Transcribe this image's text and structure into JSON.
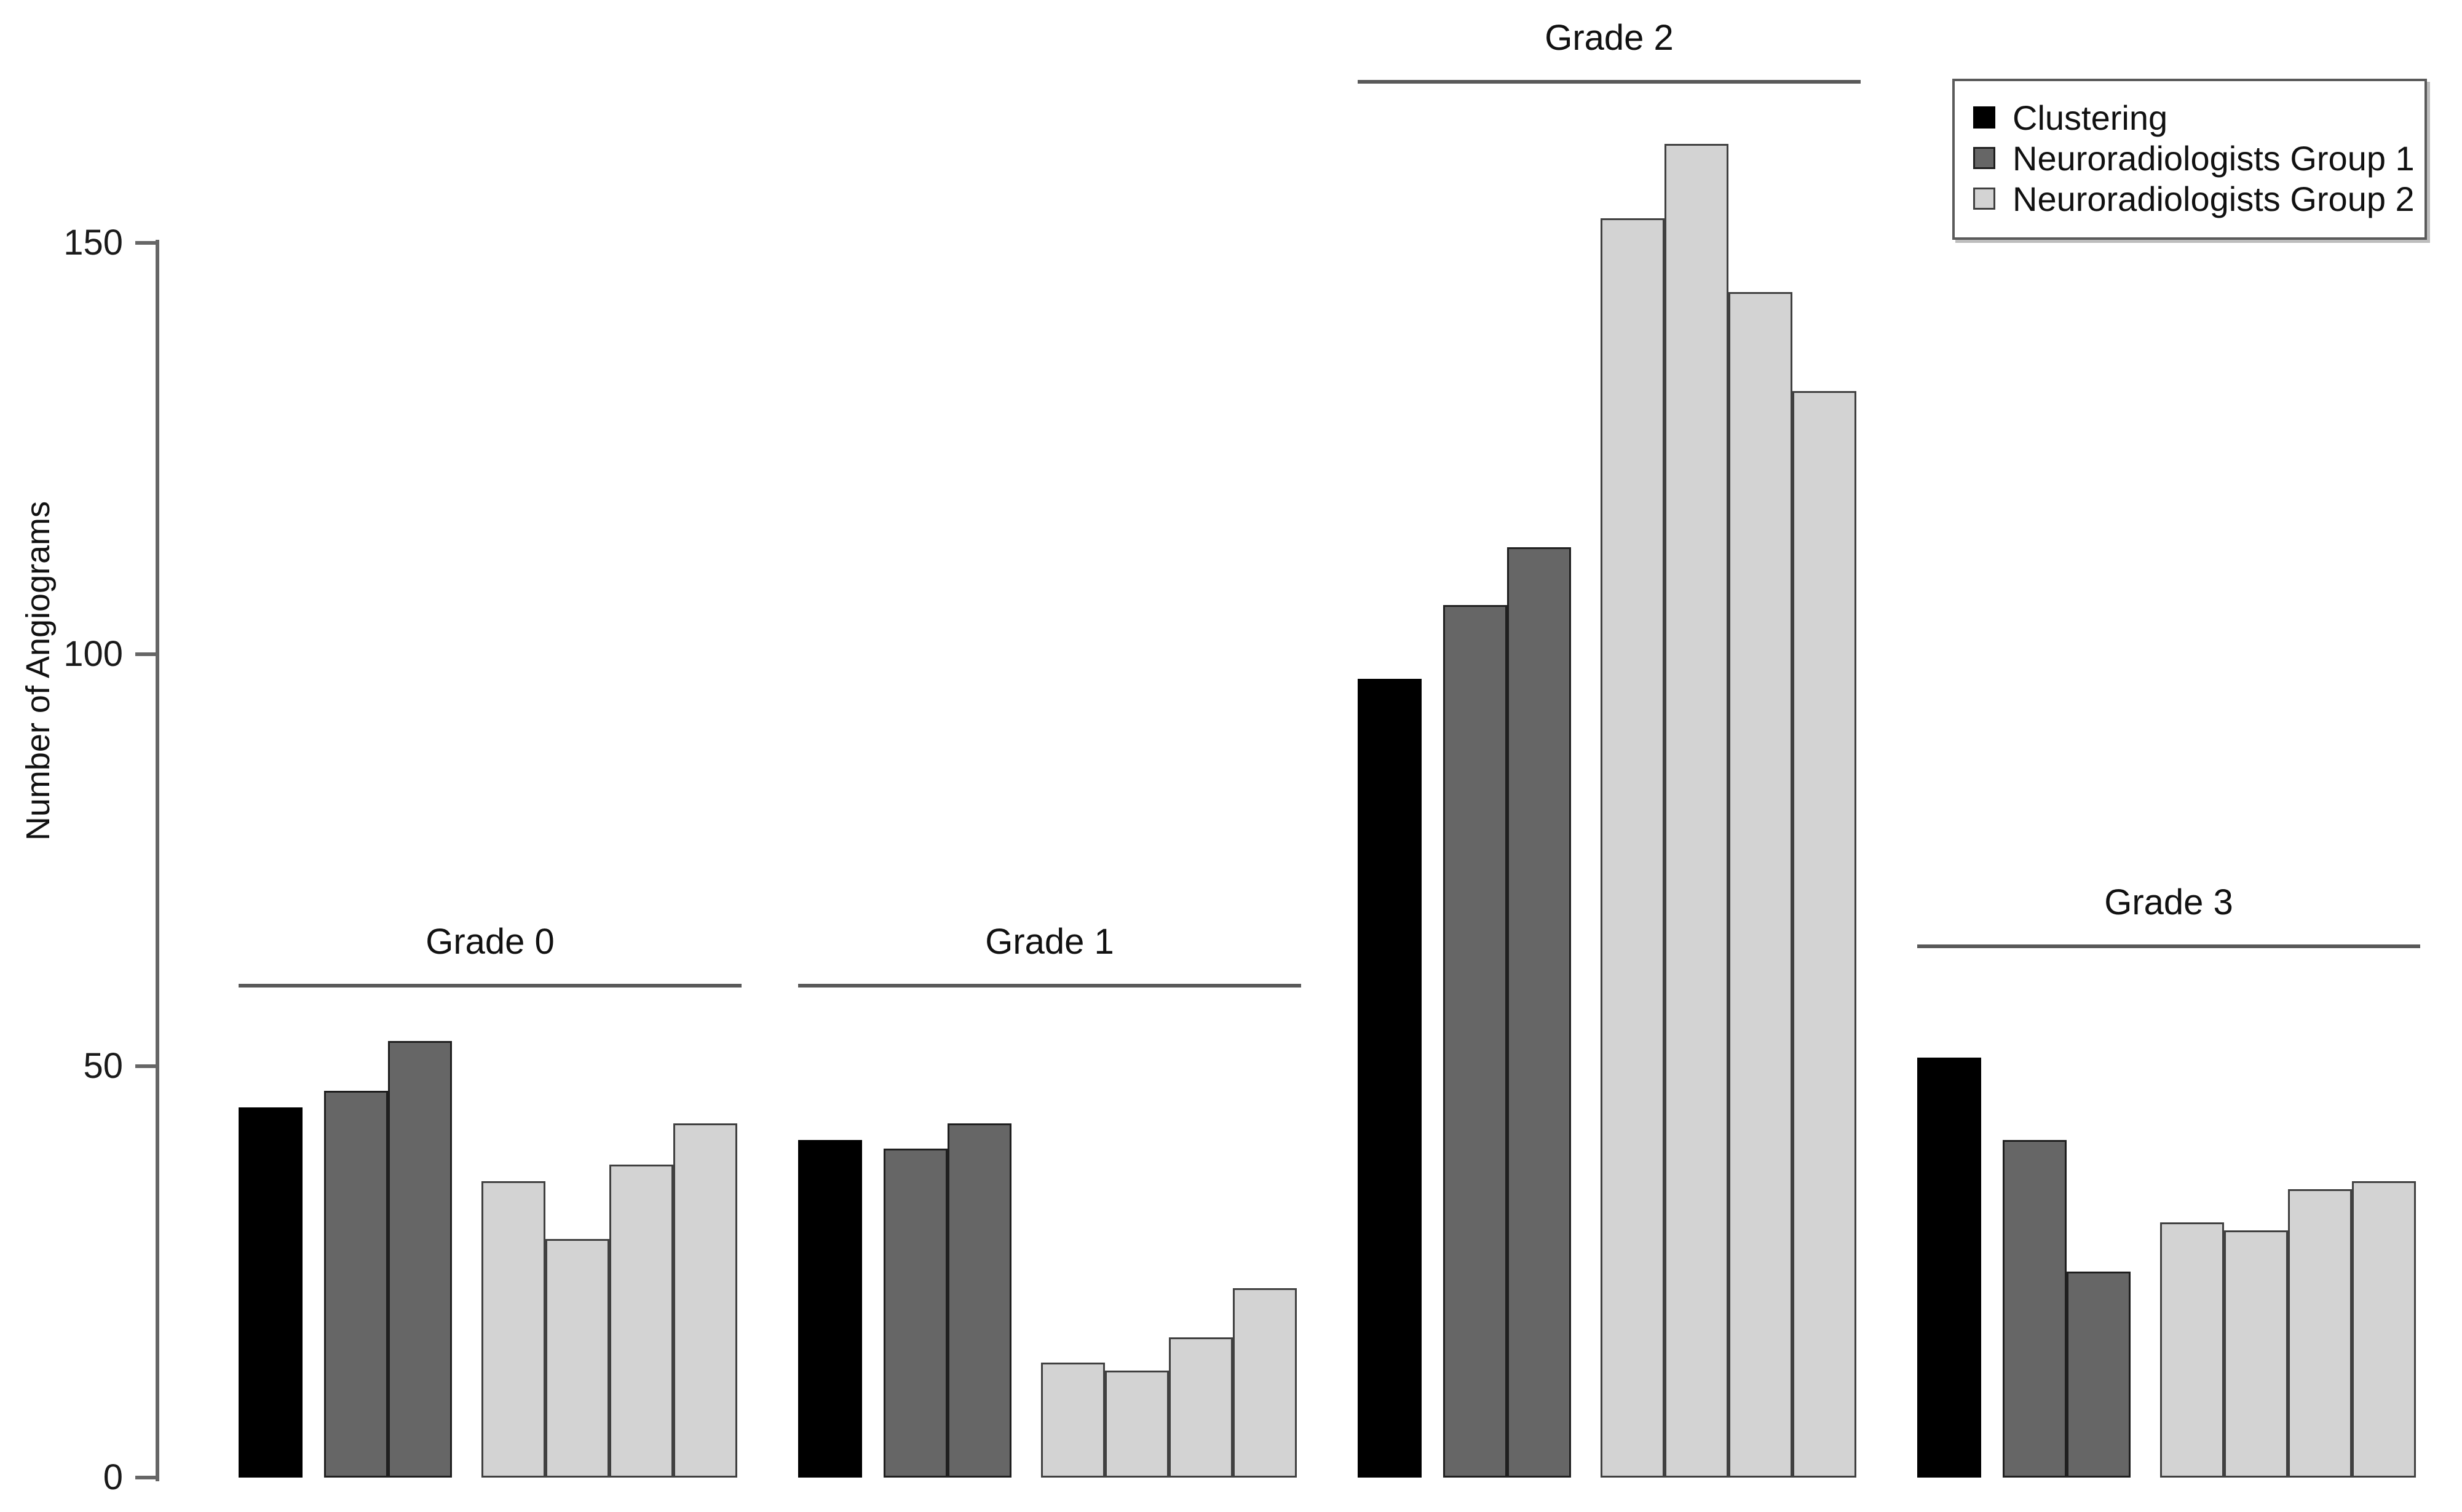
{
  "chart_data": {
    "type": "bar",
    "title": "",
    "xlabel": "",
    "ylabel": "Number of Angiograms",
    "ylim": [
      0,
      150
    ],
    "yticks": [
      "0",
      "50",
      "100",
      "150"
    ],
    "ytick_values": [
      0,
      50,
      100,
      150
    ],
    "grid": false,
    "legend_position": "top-right",
    "legend": [
      {
        "label": "Clustering",
        "series": "clustering",
        "color": "#000000",
        "border": "#000000"
      },
      {
        "label": "Neuroradiologists Group 1",
        "series": "group1",
        "color": "#666666",
        "border": "#1f1f1f"
      },
      {
        "label": "Neuroradiologists Group 2",
        "series": "group2",
        "color": "#d3d3d3",
        "border": "#404040"
      }
    ],
    "categories": [
      "Grade 0",
      "Grade 1",
      "Grade 2",
      "Grade 3"
    ],
    "bar_series_map": [
      "clustering",
      "group1",
      "group1",
      "group2",
      "group2",
      "group2",
      "group2"
    ],
    "series": [
      {
        "name": "Clustering",
        "values": [
          45,
          41,
          97,
          51
        ]
      },
      {
        "name": "Neuroradiologists Group 1 (rater 1)",
        "values": [
          47,
          40,
          106,
          41
        ]
      },
      {
        "name": "Neuroradiologists Group 1 (rater 2)",
        "values": [
          53,
          43,
          113,
          25
        ]
      },
      {
        "name": "Neuroradiologists Group 2 (rater 1)",
        "values": [
          36,
          14,
          153,
          31
        ]
      },
      {
        "name": "Neuroradiologists Group 2 (rater 2)",
        "values": [
          29,
          13,
          162,
          30
        ]
      },
      {
        "name": "Neuroradiologists Group 2 (rater 3)",
        "values": [
          38,
          17,
          144,
          35
        ]
      },
      {
        "name": "Neuroradiologists Group 2 (rater 4)",
        "values": [
          43,
          23,
          132,
          36
        ]
      }
    ]
  },
  "colors": {
    "background": "#ffffff",
    "axis": "#666666",
    "header_line": "#595959",
    "text": "#1a1a1a"
  }
}
